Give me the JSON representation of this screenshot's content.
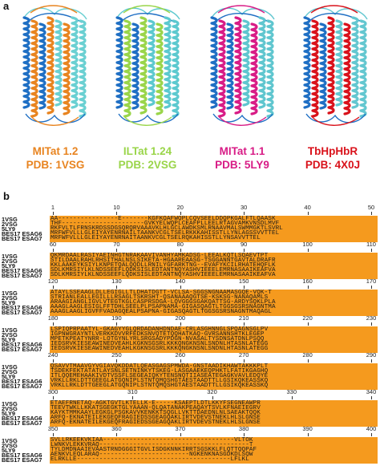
{
  "figure": {
    "panel_a": "a",
    "panel_b": "b",
    "structures": [
      {
        "name": "MITat 1.2",
        "pdb": "PDB: 1VSG",
        "color": "#e88420",
        "partner": "#6ad0d2"
      },
      {
        "name": "ILTat 1.24",
        "pdb": "PDB: 2VSG",
        "color": "#9ad54a",
        "partner": "#5cc9cf"
      },
      {
        "name": "MITat 1.1",
        "pdb": "PDB: 5LY9",
        "color": "#d81c86",
        "partner": "#5fc6cf"
      },
      {
        "name": "TbHpHbR",
        "pdb": "PDB: 4X0J",
        "color": "#d9121b",
        "partner": "#63c7d0"
      }
    ]
  },
  "alignment": {
    "blocks": [
      {
        "ticks": [
          "1",
          "10",
          "20",
          "30",
          "40",
          "50"
        ],
        "rows": [
          {
            "name": "1VSG",
            "seq": "AA----------------E-------KGFKQAFWQPLCQVSEELDDQPKGALFTLQAASK"
          },
          {
            "name": "2VSG",
            "seq": "THF----------------------GVKYELWQPLCEAFPLLEELRTAGVAMKVNSDLMVF"
          },
          {
            "name": "5LY9",
            "seq": "RKFVLTLFRNSKRDSSDGSQRQRVAAAVKLHLGCLAWDKSMLRNAAVMALSWMMGKTLSVRL"
          },
          {
            "name": "BES17 ESAG6",
            "seq": "MRFWFVLLLGLEIYAYENRNAILTAANKVCGLTSELRKKKAHISSTLLYNLAGSSVVTTEL"
          },
          {
            "name": "BES17 ESAG7",
            "seq": "MRFWFVLLLGLEIYAYENRNAITAANKVCGLTSELRQKAHISSTLLYNSAVVTTEL"
          }
        ]
      },
      {
        "ticks": [
          "60",
          "70",
          "80",
          "90",
          "100",
          "110"
        ],
        "rows": [
          {
            "name": "1VSG",
            "seq": "QKMRDAALRASIYAEINHGTNRAKAAVIVANHYAMKADSG-LEEALKQTLSQAEVTPT"
          },
          {
            "name": "2VSG",
            "seq": "STILDAALRAHLRHSITHALNSLSIKETA-HGAAREAASG-TSGGANNTGAVTALDRAFR"
          },
          {
            "name": "5LY9",
            "seq": "KKLAAKEYKSIYLKNPETQALQQDLLRNILYGFARKTNG--EVAFYKCILRHATEHQFLK"
          },
          {
            "name": "BES17 ESAG6",
            "seq": "SDLKMRSIYLKLNDSSEEFLQDKSISLEDTANTNQYASHVIEEELEMRNASAAIKEAFVA"
          },
          {
            "name": "BES17 ESAG7",
            "seq": "SDLKMRSIYLKLNDSSEEFLQDKSISLEDTANTNQYASHVIEEELEMRNASAAIKEAFVA"
          }
        ]
      },
      {
        "ticks": [
          "120",
          "130",
          "140",
          "150",
          "160",
          "170"
        ],
        "rows": [
          {
            "name": "1VSG",
            "seq": "ATAYLSSEAAGLDLLEGIGLLTLDHATDGTT-VCLSA-SGGSNGNAAMASGQE-VQK-T"
          },
          {
            "name": "2VSG",
            "seq": "STRIANLEALLEGILLLRSAGLTSKRSHT-QSANAAAQGTSE-KSKSG-NANAQAMLS"
          },
          {
            "name": "5LY9",
            "seq": "ARAAGIANGLIGVLVTEGTKGLCASPRSDGA-LQVGGGSGAKQATTSG-ARDYSQKLPLA"
          },
          {
            "name": "BES17 ESAG6",
            "seq": "AAAGLAAGLESIGLFFTDHLSEELPLPSAPNAMA-GIGASQAGTLTGGSGSRSNAGNTMA"
          },
          {
            "name": "BES17 ESAG7",
            "seq": "AAAGLAAGLIGVFFVADAGQEALPSAPNA-GIGASQAGTLTGGSGSRSNAGNTMAQAGL"
          }
        ]
      },
      {
        "ticks": [
          "180",
          "190",
          "200",
          "210",
          "220",
          "230"
        ],
        "rows": [
          {
            "name": "1VSG",
            "seq": "LSPIQPRPAATYL-GKAGYYGLQRDADANHDNDAE-CRLASGHNNGLSPQAGNSGLPV"
          },
          {
            "name": "2VSG",
            "seq": "IGPNWGRAYNTLVERKKDVVRFEDKSNVQTETQQHATKAQ-GVRSANNSHTKLEGEP"
          },
          {
            "name": "5LY9",
            "seq": "MPETKPEATYNRR-LOTGYNLYRLSRGSADYPDGN-NVASALTYSDNSATDNLPSQQ"
          },
          {
            "name": "BES17 ESAG6",
            "seq": "IEDSRVKIESEAWINEDVEAHLKGKNSGSRLKKKQNGKNSNLSNDNLHTASNLATEGG"
          },
          {
            "name": "BES17 ESAG7",
            "seq": "IEDSRVKIESEAWINEDVEAHLKGKNSGSRLKKKQNGKNSNLSNDNLHTASNLATEGG"
          }
        ]
      },
      {
        "ticks": [
          "240",
          "250",
          "260",
          "270",
          "280",
          "290"
        ],
        "rows": [
          {
            "name": "1VSG",
            "seq": "QSAVVTMAAVGYVGIAVQKDDATLQEASGAGSPMWDA-GNSTAADIKHAWTAKKKPLT"
          },
          {
            "name": "2VSG",
            "seq": "TSDEKFEKTATATLAYSNLSETNINKYTSKEG-LASGAAEKEQPHKTLFATIKGAGHQ"
          },
          {
            "name": "5LY9",
            "seq": "ITLQQEMEHAAKIVDTVSSFLSEGEAIQKYTENSNQTIIASEATEGAGKVAVLEDQYE"
          },
          {
            "name": "BES17 ESAG6",
            "seq": "VRKLLRKLDTTGEEGLATGQNIPLSTNTQMQSHGTAESTAADTTLLGSIKQKEASSKQ"
          },
          {
            "name": "BES17 ESAG7",
            "seq": "VRKLLRKLDTTGEEGLATGQNIPLSTNTQMQSHGTAESTAADTTLLGSIKQKEASSKQ"
          }
        ]
      },
      {
        "ticks": [
          "300",
          "310",
          "320",
          "330",
          "340"
        ],
        "rows": [
          {
            "name": "1VSG",
            "seq": "ETAEFRNETAQ-AGKTGVTLKTELLK-E-----KSAEPTLDTLKKYFSEGNEAWPR"
          },
          {
            "name": "2VSG",
            "seq": "TEEVTWKLLKKATSGEGKTGLYAAAN-QLQATANAKPEAQAYTSVLKFNAEIEGRV"
          },
          {
            "name": "5LY9",
            "seq": "KAYKTMMKAAYLEGKGLPSGKAVVKENKKTSQGLLVKTTDAEDNLNLSAEAKTQQK"
          },
          {
            "name": "BES17 ESAG6",
            "seq": "ARFQ-EKNATEILEKGEQFRAGIEDSSGEAGQAKLIRTVDEVSTNEKLHLSLGNSE"
          },
          {
            "name": "BES17 ESAG7",
            "seq": "ARFQ-EKNATEILEKGEQFRAGIEDSSGEAGQAKLIRTVDEVSTNEKLHLSLGNSE"
          }
        ]
      },
      {
        "ticks": [
          "350",
          "360",
          "370",
          "380",
          "390",
          "400"
        ],
        "rows": [
          {
            "name": "1VSG",
            "seq": "SVLLRKEEKVKIAA-----------------------------------VLTOK"
          },
          {
            "name": "2VSG",
            "seq": "LWNKVLEKKVRAQ----------------------------------------T"
          },
          {
            "name": "5LY9",
            "seq": "TYLDMDNAAIEVAASTRNDGGGITGVLISDGKNNKIRRTSGSKKLFLQTTQQPAF"
          },
          {
            "name": "BES17 ESAG6",
            "seq": "AENKVLEQLARAQ------------------------NGKENKNASGDKDLSQW"
          },
          {
            "name": "BES17 ESAG7",
            "seq": "ELRKLLE-----------------------------------------LFLKL"
          }
        ]
      }
    ]
  }
}
